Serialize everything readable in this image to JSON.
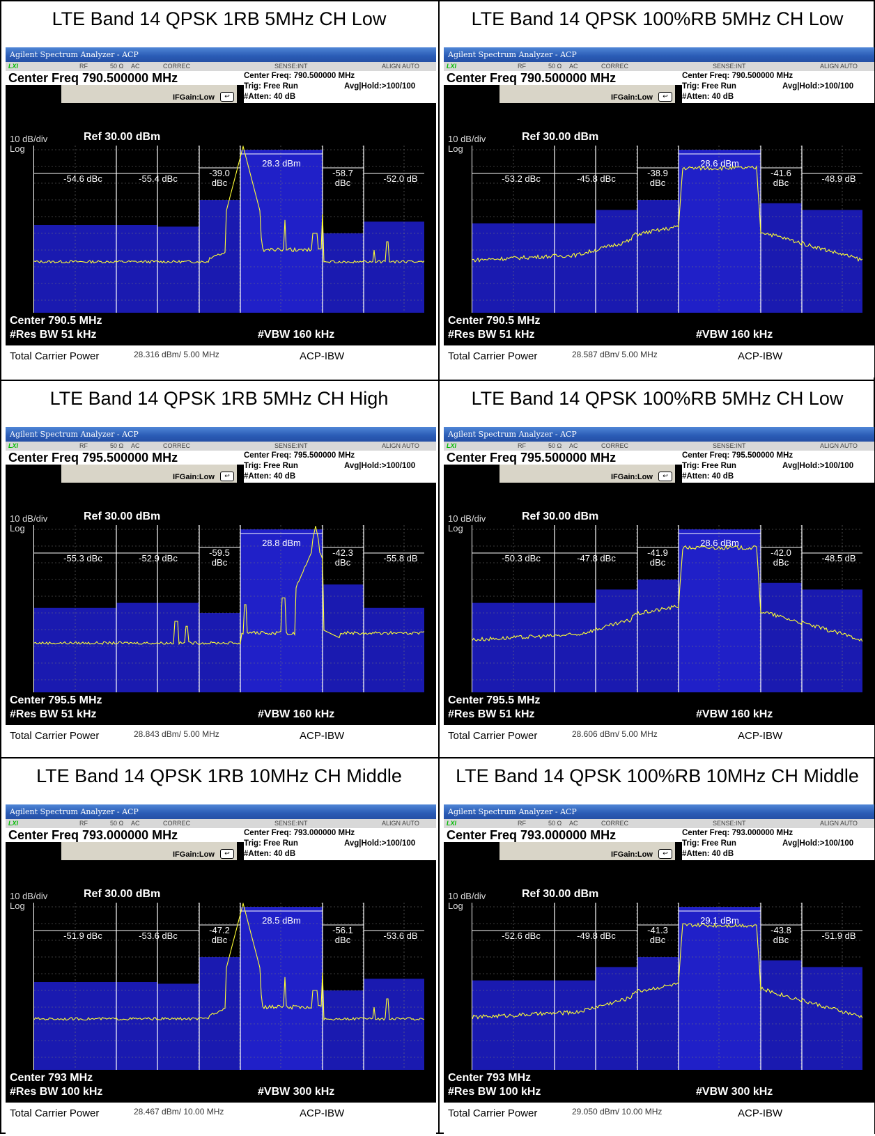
{
  "panels": [
    {
      "title": "LTE Band 14 QPSK 1RB 5MHz CH Low",
      "app_title": "Agilent Spectrum Analyzer - ACP",
      "status": {
        "lxi": "LXI",
        "rf": "RF",
        "ohm": "50 Ω",
        "ac": "AC",
        "correc": "CORREC",
        "sense": "SENSE:INT",
        "align": "ALIGN AUTO"
      },
      "center_freq": "Center Freq 790.500000 MHz",
      "info_center": "Center Freq: 790.500000 MHz",
      "trig": "Trig: Free Run",
      "avg": "Avg|Hold:>100/100",
      "atten": "#Atten: 40 dB",
      "ifgain": "IFGain:Low",
      "scale": "10 dB/div",
      "ref": "Ref 30.00 dBm",
      "log": "Log",
      "center": "Center  790.5 MHz",
      "rbw": "#Res BW  51 kHz",
      "vbw": "#VBW  160 kHz",
      "tcp_label": "Total Carrier Power",
      "tcp_value": "28.316 dBm/ 5.00 MHz",
      "acp_label": "ACP-IBW",
      "carrier_power": "28.3 dBm",
      "acp": [
        "-54.6 dBc",
        "-55.4 dBc",
        "-39.0 dBc",
        "-58.7 dBc",
        "-52.0 dB"
      ],
      "mode": "1rb_low"
    },
    {
      "title": "LTE Band 14 QPSK 100%RB 5MHz CH Low",
      "app_title": "Agilent Spectrum Analyzer - ACP",
      "status": {
        "lxi": "LXI",
        "rf": "RF",
        "ohm": "50 Ω",
        "ac": "AC",
        "correc": "CORREC",
        "sense": "SENSE:INT",
        "align": "ALIGN AUTO"
      },
      "center_freq": "Center Freq 790.500000 MHz",
      "info_center": "Center Freq: 790.500000 MHz",
      "trig": "Trig: Free Run",
      "avg": "Avg|Hold:>100/100",
      "atten": "#Atten: 40 dB",
      "ifgain": "IFGain:Low",
      "scale": "10 dB/div",
      "ref": "Ref 30.00 dBm",
      "log": "Log",
      "center": "Center  790.5 MHz",
      "rbw": "#Res BW  51 kHz",
      "vbw": "#VBW  160 kHz",
      "tcp_label": "Total Carrier Power",
      "tcp_value": "28.587 dBm/ 5.00 MHz",
      "acp_label": "ACP-IBW",
      "carrier_power": "28.6 dBm",
      "acp": [
        "-53.2 dBc",
        "-45.8 dBc",
        "-38.9 dBc",
        "-41.6 dBc",
        "-48.9 dB"
      ],
      "mode": "full"
    },
    {
      "title": "LTE Band 14 QPSK 1RB 5MHz CH High",
      "app_title": "Agilent Spectrum Analyzer - ACP",
      "status": {
        "lxi": "LXI",
        "rf": "RF",
        "ohm": "50 Ω",
        "ac": "AC",
        "correc": "CORREC",
        "sense": "SENSE:INT",
        "align": "ALIGN AUTO"
      },
      "center_freq": "Center Freq 795.500000 MHz",
      "info_center": "Center Freq: 795.500000 MHz",
      "trig": "Trig: Free Run",
      "avg": "Avg|Hold:>100/100",
      "atten": "#Atten: 40 dB",
      "ifgain": "IFGain:Low",
      "scale": "10 dB/div",
      "ref": "Ref 30.00 dBm",
      "log": "Log",
      "center": "Center  795.5 MHz",
      "rbw": "#Res BW  51 kHz",
      "vbw": "#VBW  160 kHz",
      "tcp_label": "Total Carrier Power",
      "tcp_value": "28.843 dBm/ 5.00 MHz",
      "acp_label": "ACP-IBW",
      "carrier_power": "28.8 dBm",
      "acp": [
        "-55.3 dBc",
        "-52.9 dBc",
        "-59.5 dBc",
        "-42.3 dBc",
        "-55.8 dB"
      ],
      "mode": "1rb_high"
    },
    {
      "title": "LTE Band 14 QPSK 100%RB 5MHz CH Low",
      "app_title": "Agilent Spectrum Analyzer - ACP",
      "status": {
        "lxi": "LXI",
        "rf": "RF",
        "ohm": "50 Ω",
        "ac": "AC",
        "correc": "CORREC",
        "sense": "SENSE:INT",
        "align": "ALIGN AUTO"
      },
      "center_freq": "Center Freq 795.500000 MHz",
      "info_center": "Center Freq: 795.500000 MHz",
      "trig": "Trig: Free Run",
      "avg": "Avg|Hold:>100/100",
      "atten": "#Atten: 40 dB",
      "ifgain": "IFGain:Low",
      "scale": "10 dB/div",
      "ref": "Ref 30.00 dBm",
      "log": "Log",
      "center": "Center  795.5 MHz",
      "rbw": "#Res BW  51 kHz",
      "vbw": "#VBW  160 kHz",
      "tcp_label": "Total Carrier Power",
      "tcp_value": "28.606 dBm/ 5.00 MHz",
      "acp_label": "ACP-IBW",
      "carrier_power": "28.6 dBm",
      "acp": [
        "-50.3 dBc",
        "-47.8 dBc",
        "-41.9 dBc",
        "-42.0 dBc",
        "-48.5 dB"
      ],
      "mode": "full"
    },
    {
      "title": "LTE Band 14 QPSK 1RB 10MHz CH Middle",
      "app_title": "Agilent Spectrum Analyzer - ACP",
      "status": {
        "lxi": "LXI",
        "rf": "RF",
        "ohm": "50 Ω",
        "ac": "AC",
        "correc": "CORREC",
        "sense": "SENSE:INT",
        "align": "ALIGN AUTO"
      },
      "center_freq": "Center Freq 793.000000 MHz",
      "info_center": "Center Freq: 793.000000 MHz",
      "trig": "Trig: Free Run",
      "avg": "Avg|Hold:>100/100",
      "atten": "#Atten: 40 dB",
      "ifgain": "IFGain:Low",
      "scale": "10 dB/div",
      "ref": "Ref 30.00 dBm",
      "log": "Log",
      "center": "Center  793 MHz",
      "rbw": "#Res BW  100 kHz",
      "vbw": "#VBW  300 kHz",
      "tcp_label": "Total Carrier Power",
      "tcp_value": "28.467 dBm/ 10.00 MHz",
      "acp_label": "ACP-IBW",
      "carrier_power": "28.5 dBm",
      "acp": [
        "-51.9 dBc",
        "-53.6 dBc",
        "-47.2 dBc",
        "-56.1 dBc",
        "-53.6 dB"
      ],
      "mode": "1rb_low"
    },
    {
      "title": "LTE Band 14 QPSK 100%RB 10MHz CH Middle",
      "app_title": "Agilent Spectrum Analyzer - ACP",
      "status": {
        "lxi": "LXI",
        "rf": "RF",
        "ohm": "50 Ω",
        "ac": "AC",
        "correc": "CORREC",
        "sense": "SENSE:INT",
        "align": "ALIGN AUTO"
      },
      "center_freq": "Center Freq 793.000000 MHz",
      "info_center": "Center Freq: 793.000000 MHz",
      "trig": "Trig: Free Run",
      "avg": "Avg|Hold:>100/100",
      "atten": "#Atten: 40 dB",
      "ifgain": "IFGain:Low",
      "scale": "10 dB/div",
      "ref": "Ref 30.00 dBm",
      "log": "Log",
      "center": "Center  793 MHz",
      "rbw": "#Res BW  100 kHz",
      "vbw": "#VBW  300 kHz",
      "tcp_label": "Total Carrier Power",
      "tcp_value": "29.050 dBm/ 10.00 MHz",
      "acp_label": "ACP-IBW",
      "carrier_power": "29.1 dBm",
      "acp": [
        "-52.6 dBc",
        "-49.8 dBc",
        "-41.3 dBc",
        "-43.8 dBc",
        "-51.9 dB"
      ],
      "mode": "full"
    }
  ],
  "y_ticks": [
    "20.0",
    "10.0",
    "0.00",
    "-10.0",
    "-20.0",
    "-30.0",
    "-40.0",
    "-50.0",
    "-60.0"
  ],
  "colors": {
    "trace": "#ffff33",
    "mask": "#1a1ab0",
    "carrier": "#2020c8",
    "grid": "#ffffff"
  }
}
